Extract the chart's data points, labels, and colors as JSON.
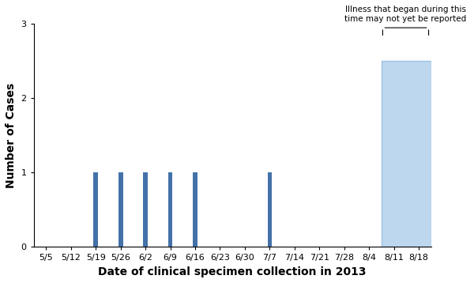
{
  "title": "",
  "xlabel": "Date of clinical specimen collection in 2013",
  "ylabel": "Number of Cases",
  "bar_dates": [
    "5/19",
    "5/26",
    "6/2",
    "6/9",
    "6/16",
    "7/7"
  ],
  "bar_values": [
    1,
    1,
    1,
    1,
    1,
    1
  ],
  "bar_color": "#4472A8",
  "shaded_start": "8/11",
  "shaded_value": 2.5,
  "shaded_color": "#BDD7EE",
  "shaded_edge_color": "#9DC3E6",
  "tick_labels": [
    "5/5",
    "5/12",
    "5/19",
    "5/26",
    "6/2",
    "6/9",
    "6/16",
    "6/23",
    "6/30",
    "7/7",
    "7/14",
    "7/21",
    "7/28",
    "8/4",
    "8/11",
    "8/18"
  ],
  "ylim": [
    0,
    3
  ],
  "yticks": [
    0,
    1,
    2,
    3
  ],
  "annotation_text": "Illness that began during this\ntime may not yet be reported",
  "annotation_fontsize": 7.5,
  "xlabel_fontsize": 10,
  "ylabel_fontsize": 10,
  "tick_fontsize": 8,
  "background_color": "#FFFFFF"
}
